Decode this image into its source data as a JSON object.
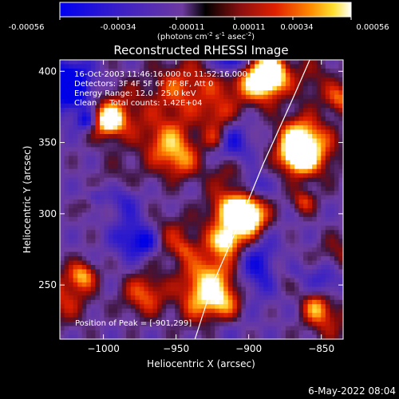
{
  "colorbar": {
    "tick_labels": [
      "-0.00056",
      "-0.00034",
      "-0.00011",
      "0.00011",
      "0.00034",
      "0.00056"
    ],
    "units": "(photons cm",
    "units_exp1": "-2",
    "units_mid": " s",
    "units_exp2": "-1",
    "units_end": " asec",
    "units_exp3": "-2",
    "units_close": ")"
  },
  "footer": {
    "date": "6-May-2022 08:04"
  },
  "chart_data": {
    "type": "heatmap",
    "title": "Reconstructed RHESSI Image",
    "xlabel": "Heliocentric X (arcsec)",
    "ylabel": "Heliocentric Y (arcsec)",
    "xlim": [
      -1030,
      -835
    ],
    "ylim": [
      212,
      408
    ],
    "x_ticks": [
      -1000,
      -950,
      -900,
      -850
    ],
    "y_ticks": [
      250,
      300,
      350,
      400
    ],
    "x_tick_labels": [
      "−1000",
      "−950",
      "−900",
      "−850"
    ],
    "y_tick_labels": [
      "250",
      "300",
      "350",
      "400"
    ],
    "color_range": [
      -0.00056,
      0.00056
    ],
    "annotations": [
      "16-Oct-2003 11:46:16.000 to 11:52:16.000",
      "Detectors: 3F 4F 5F 6F 7F 8F, Att 0",
      "Energy Range: 12.0 - 25.0 keV",
      "Clean     Total counts: 1.42E+04"
    ],
    "peak_label": "Position of Peak = [-901,299]",
    "peak": [
      -901,
      299
    ],
    "limb_curve": [
      [
        -937,
        212
      ],
      [
        -925,
        250
      ],
      [
        -908,
        290
      ],
      [
        -890,
        335
      ],
      [
        -870,
        380
      ],
      [
        -858,
        408
      ]
    ]
  }
}
